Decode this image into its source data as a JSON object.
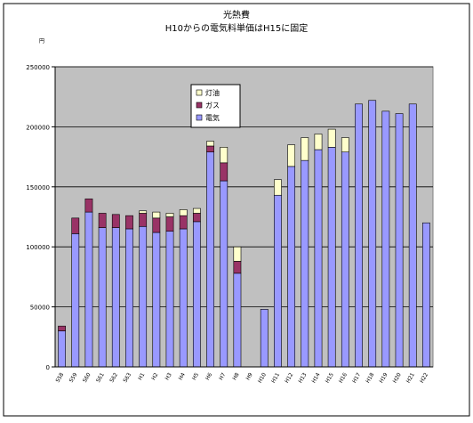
{
  "chart_data": {
    "type": "stacked-bar",
    "title": "光熱費",
    "subtitle": "H10からの電気料単価はH15に固定",
    "y_label": "円",
    "categories": [
      "S58",
      "S59",
      "S60",
      "S61",
      "S62",
      "S63",
      "H1",
      "H2",
      "H3",
      "H4",
      "H5",
      "H6",
      "H7",
      "H8",
      "H9",
      "H10",
      "H11",
      "H12",
      "H13",
      "H14",
      "H15",
      "H16",
      "H17",
      "H18",
      "H19",
      "H20",
      "H21",
      "H22"
    ],
    "series": [
      {
        "name": "電気",
        "color": "#9999ff",
        "values": [
          30000,
          111000,
          129000,
          116000,
          116000,
          115000,
          117000,
          112000,
          113000,
          115000,
          121000,
          179000,
          155000,
          78000,
          null,
          48000,
          143000,
          167000,
          172000,
          181000,
          183000,
          179000,
          219000,
          222000,
          213000,
          211000,
          219000,
          120000
        ]
      },
      {
        "name": "ガス",
        "color": "#993366",
        "values": [
          4000,
          13000,
          11000,
          12000,
          11000,
          11000,
          11000,
          12000,
          12000,
          11000,
          7000,
          5000,
          15000,
          10000,
          null,
          null,
          null,
          null,
          null,
          null,
          null,
          null,
          null,
          null,
          null,
          null,
          null,
          null
        ]
      },
      {
        "name": "灯油",
        "color": "#ffffcc",
        "values": [
          null,
          null,
          null,
          null,
          null,
          null,
          2000,
          5000,
          3000,
          5000,
          4000,
          4000,
          13000,
          12000,
          null,
          null,
          13000,
          18000,
          19000,
          13000,
          15000,
          12000,
          null,
          null,
          null,
          null,
          null,
          null
        ]
      }
    ],
    "ylim": [
      0,
      250000
    ],
    "yticks": [
      0,
      50000,
      100000,
      150000,
      200000,
      250000
    ],
    "grid": true,
    "legend": "top-left"
  }
}
